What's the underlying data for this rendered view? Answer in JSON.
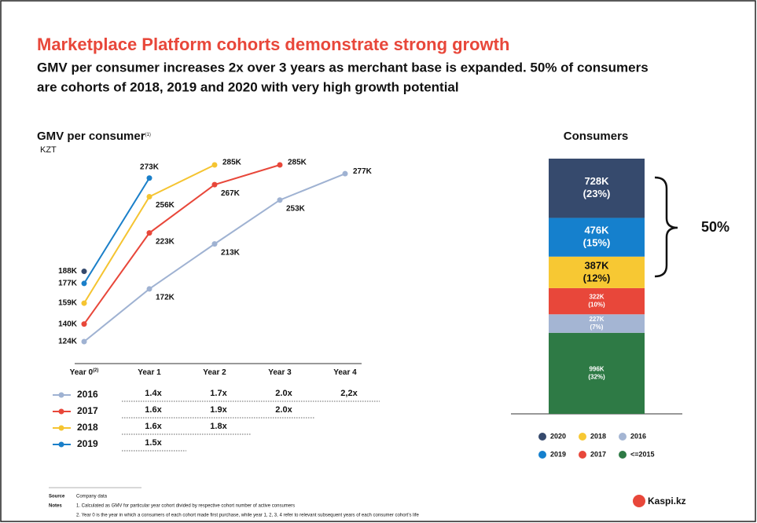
{
  "header": {
    "title": "Marketplace Platform cohorts demonstrate strong growth",
    "subtitle_lines": [
      "GMV per consumer increases 2x over 3 years as merchant base is expanded. 50% of consumers",
      "are cohorts of 2018, 2019 and 2020 with very high growth potential"
    ]
  },
  "chart_data": [
    {
      "type": "line",
      "title": "GMV per consumer",
      "title_note": "(1)",
      "unit": "KZT",
      "categories": [
        "Year 0",
        "Year 1",
        "Year 2",
        "Year 3",
        "Year 4"
      ],
      "category_note": "(2)",
      "series": [
        {
          "name": "2016",
          "color": "#9fb2d2",
          "values": [
            124,
            172,
            213,
            253,
            277
          ],
          "value_labels": [
            "124K",
            "172K",
            "213K",
            "253K",
            "277K"
          ]
        },
        {
          "name": "2017",
          "color": "#e8473a",
          "values": [
            140,
            223,
            267,
            285,
            null
          ],
          "value_labels": [
            "140K",
            "223K",
            "267K",
            "285K",
            null
          ]
        },
        {
          "name": "2018",
          "color": "#f5c431",
          "values": [
            159,
            256,
            285,
            null,
            null
          ],
          "value_labels": [
            "159K",
            "256K",
            "285K",
            null,
            null
          ]
        },
        {
          "name": "2019",
          "color": "#1a7fc9",
          "values": [
            177,
            273,
            null,
            null,
            null
          ],
          "value_labels": [
            "177K",
            "273K",
            null,
            null,
            null
          ]
        },
        {
          "color": "#34496c",
          "values": [
            188,
            null,
            null,
            null,
            null
          ],
          "value_labels": [
            "188K",
            null,
            null,
            null,
            null
          ]
        }
      ],
      "multiples": [
        [
          "1.4x",
          "1.7x",
          "2.0x",
          "2,2x"
        ],
        [
          "1.6x",
          "1.9x",
          "2.0x"
        ],
        [
          "1.6x",
          "1.8x"
        ],
        [
          "1.5x"
        ]
      ]
    },
    {
      "type": "stacked_bar",
      "title": "Consumers",
      "stacked": true,
      "annotation": "50%",
      "series": [
        {
          "name": "<=2015",
          "color": "#2e7a45",
          "values": [
            996
          ],
          "value_labels": [
            "996K"
          ]
        },
        {
          "name": "2016",
          "color": "#a4b5d3",
          "values": [
            227
          ],
          "value_labels": [
            "227K"
          ]
        },
        {
          "name": "2017",
          "color": "#e8473a",
          "values": [
            322
          ],
          "value_labels": [
            "322K"
          ]
        },
        {
          "name": "2018",
          "color": "#f7c833",
          "values": [
            387
          ],
          "value_labels": [
            "387K"
          ]
        },
        {
          "name": "2019",
          "color": "#1580cd",
          "values": [
            476
          ],
          "value_labels": [
            "476K"
          ]
        },
        {
          "name": "2020",
          "color": "#364a6d",
          "values": [
            728
          ],
          "value_labels": [
            "728K"
          ]
        }
      ],
      "percents": [
        32,
        7,
        10,
        12,
        15,
        23
      ],
      "percent_labels": [
        "(32%)",
        "(7%)",
        "(10%)",
        "(12%)",
        "(15%)",
        "(23%)"
      ]
    }
  ],
  "footer": {
    "source_label": "Source",
    "source": "Company data",
    "notes_label": "Notes",
    "notes": [
      "1.   Calculated as GMV for particular year cohort divided by respective cohort number of active consumers",
      "2.  Year 0 is the year in which a consumers of each cohort made first purchase, while year 1, 2, 3, 4 refer to relevant subsequent years of each consumer cohort’s life"
    ],
    "logo": "Kaspi.kz"
  }
}
